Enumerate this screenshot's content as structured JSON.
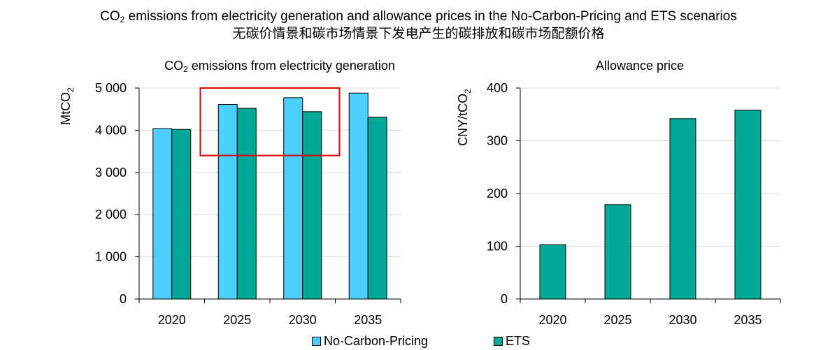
{
  "title_line1": {
    "pre": "CO",
    "sub": "2",
    "post": " emissions from electricity generation and allowance prices in the No-Carbon-Pricing and ETS scenarios"
  },
  "title_line2": "无碳价情景和碳市场情景下发电产生的碳排放和碳市场配额价格",
  "colors": {
    "no_carbon": "#4dcfff",
    "ets": "#00a896",
    "highlight": "#e00000",
    "grid": "#d9d9d9"
  },
  "legend": {
    "no_carbon": "No-Carbon-Pricing",
    "ets": "ETS"
  },
  "chart_data": [
    {
      "type": "bar",
      "title": {
        "pre": "CO",
        "sub": "2",
        "post": " emissions from electricity generation"
      },
      "ylabel": {
        "pre": "MtCO",
        "sub": "2"
      },
      "categories": [
        "2020",
        "2025",
        "2030",
        "2035"
      ],
      "series": [
        {
          "name": "No-Carbon-Pricing",
          "values": [
            4040,
            4610,
            4770,
            4880
          ]
        },
        {
          "name": "ETS",
          "values": [
            4020,
            4520,
            4440,
            4310
          ]
        }
      ],
      "ylim": [
        0,
        5000
      ],
      "yticks": [
        0,
        1000,
        2000,
        3000,
        4000,
        5000
      ],
      "ytick_labels": [
        "0",
        "1 000",
        "2 000",
        "3 000",
        "4 000",
        "5 000"
      ],
      "highlight": {
        "categories": [
          "2025",
          "2030"
        ],
        "ymin": 3400,
        "ymax": 5000
      }
    },
    {
      "type": "bar",
      "title": "Allowance price",
      "ylabel": {
        "pre": "CNY/tCO",
        "sub": "2"
      },
      "categories": [
        "2020",
        "2025",
        "2030",
        "2035"
      ],
      "series": [
        {
          "name": "ETS",
          "values": [
            103,
            179,
            342,
            358
          ]
        }
      ],
      "ylim": [
        0,
        400
      ],
      "yticks": [
        0,
        100,
        200,
        300,
        400
      ],
      "ytick_labels": [
        "0",
        "100",
        "200",
        "300",
        "400"
      ]
    }
  ]
}
